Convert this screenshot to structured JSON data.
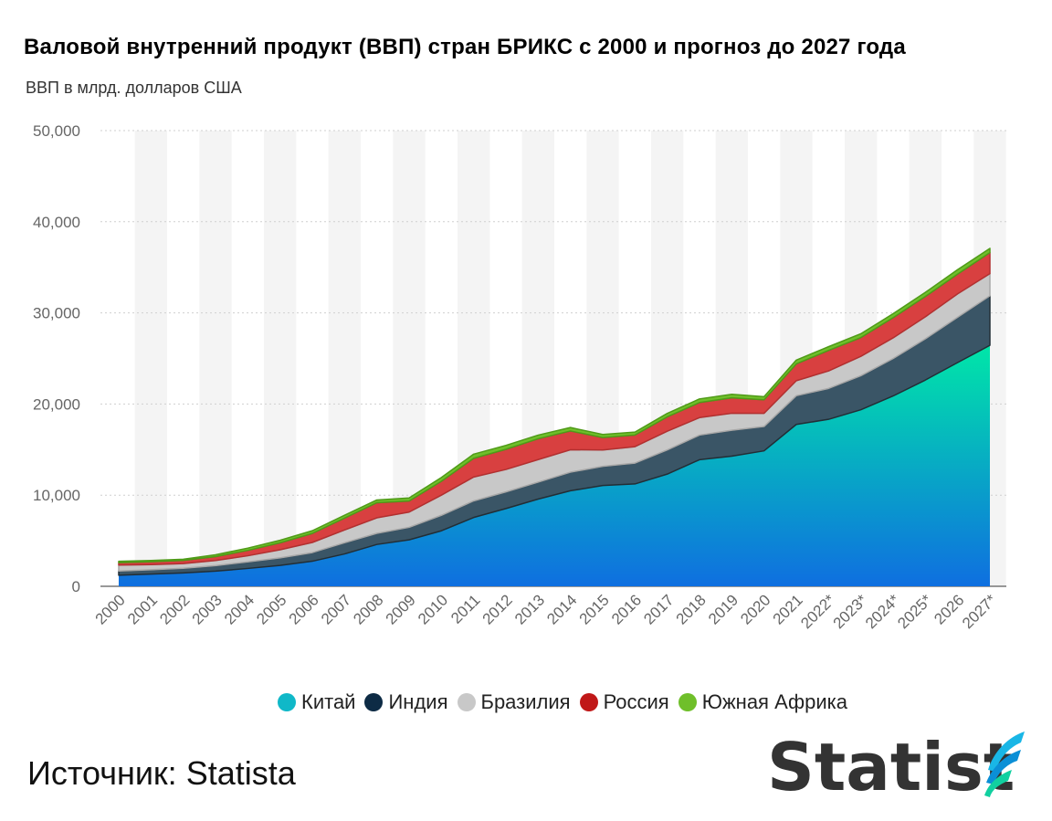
{
  "title": "Валовой внутренний продукт (ВВП) стран БРИКС с 2000 и прогноз до 2027 года",
  "subtitle": "ВВП в млрд. долларов США",
  "source": "Источник: Statista",
  "logo": "Statista",
  "colors": {
    "china_top": "#00e6a8",
    "china_bottom": "#0f6fe0",
    "india": "#3a5566",
    "india_border": "#222e36",
    "brazil": "#c8c8c8",
    "russia": "#d84040",
    "south_africa": "#6fbf2a",
    "stripe": "#f4f4f4",
    "grid": "#cfcfcf"
  },
  "legend": [
    {
      "label": "Китай",
      "color": "#10b8c8"
    },
    {
      "label": "Индия",
      "color": "#0d2b45"
    },
    {
      "label": "Бразилия",
      "color": "#c8c8c8"
    },
    {
      "label": "Россия",
      "color": "#c01818"
    },
    {
      "label": "Южная Африка",
      "color": "#6fbf2a"
    }
  ],
  "chart_data": {
    "type": "area",
    "stacked": true,
    "title": "Валовой внутренний продукт (ВВП) стран БРИКС с 2000 и прогноз до 2027 года",
    "ylabel": "ВВП в млрд. долларов США",
    "ylim": [
      0,
      50000
    ],
    "yticks": [
      "0",
      "10,000",
      "20,000",
      "30,000",
      "40,000",
      "50,000"
    ],
    "ytick_values": [
      0,
      10000,
      20000,
      30000,
      40000,
      50000
    ],
    "grid": true,
    "legend_position": "bottom",
    "categories": [
      "2000",
      "2001",
      "2002",
      "2003",
      "2004",
      "2005",
      "2006",
      "2007",
      "2008",
      "2009",
      "2010",
      "2011",
      "2012",
      "2013",
      "2014",
      "2015",
      "2016",
      "2017",
      "2018",
      "2019",
      "2020",
      "2021",
      "2022*",
      "2023*",
      "2024*",
      "2025*",
      "2026",
      "2027*"
    ],
    "series": [
      {
        "name": "Китай",
        "values": [
          1210,
          1340,
          1470,
          1660,
          1960,
          2290,
          2750,
          3550,
          4590,
          5100,
          6090,
          7550,
          8530,
          9570,
          10480,
          11060,
          11230,
          12310,
          13890,
          14280,
          14860,
          17760,
          18320,
          19370,
          20880,
          22630,
          24550,
          26440
        ]
      },
      {
        "name": "Индия",
        "values": [
          470,
          480,
          510,
          610,
          720,
          830,
          950,
          1230,
          1220,
          1370,
          1700,
          1820,
          1830,
          1860,
          2040,
          2100,
          2290,
          2650,
          2700,
          2840,
          2670,
          3150,
          3390,
          3730,
          4110,
          4520,
          4970,
          5430
        ]
      },
      {
        "name": "Бразилия",
        "values": [
          650,
          560,
          510,
          560,
          670,
          890,
          1110,
          1400,
          1700,
          1670,
          2210,
          2620,
          2460,
          2470,
          2460,
          1800,
          1800,
          2060,
          1920,
          1870,
          1450,
          1650,
          1920,
          2130,
          2270,
          2420,
          2570,
          2440
        ]
      },
      {
        "name": "Россия",
        "values": [
          260,
          310,
          350,
          430,
          590,
          760,
          990,
          1300,
          1660,
          1220,
          1520,
          2050,
          2210,
          2290,
          2060,
          1360,
          1280,
          1570,
          1650,
          1690,
          1490,
          1840,
          2250,
          2060,
          2210,
          2230,
          2170,
          2300
        ]
      },
      {
        "name": "Южная Африка",
        "values": [
          150,
          140,
          130,
          200,
          250,
          280,
          300,
          320,
          300,
          330,
          420,
          460,
          430,
          400,
          380,
          340,
          320,
          380,
          400,
          390,
          340,
          420,
          410,
          420,
          440,
          450,
          480,
          470
        ]
      }
    ]
  }
}
